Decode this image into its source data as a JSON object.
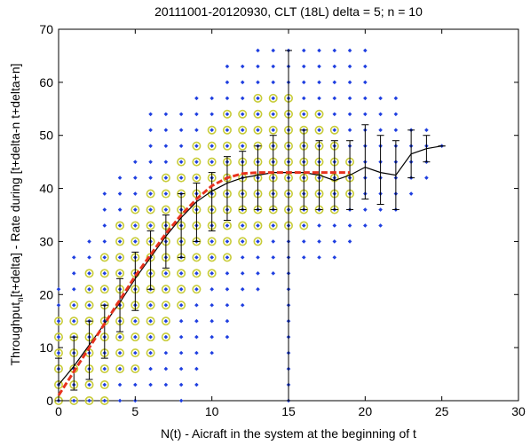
{
  "chart_data": {
    "type": "scatter",
    "title": "20111001-20120930, CLT (18L) delta = 5; n = 10",
    "xlabel": "N(t) - Aicraft in the system at the beginning of t",
    "ylabel_parts": {
      "pre": "Throughput",
      "sub": "n",
      "post": "[t+delta] - Rate during [t+delta-n t+delta+n]"
    },
    "xlim": [
      0,
      30
    ],
    "ylim": [
      0,
      70
    ],
    "xticks": [
      0,
      5,
      10,
      15,
      20,
      25,
      30
    ],
    "yticks": [
      0,
      10,
      20,
      30,
      40,
      50,
      60,
      70
    ],
    "grid": false,
    "colors": {
      "points": "#1f3fe0",
      "highlight_ring": "#c8cc3a",
      "mean_line": "#000000",
      "fit_line": "#e8321e"
    },
    "scatter_columns": [
      {
        "x": 0,
        "ymin": 0,
        "ymax": 21
      },
      {
        "x": 1,
        "ymin": 0,
        "ymax": 27
      },
      {
        "x": 2,
        "ymin": 0,
        "ymax": 30
      },
      {
        "x": 3,
        "ymin": 0,
        "ymax": 39
      },
      {
        "x": 4,
        "ymin": 0,
        "ymax": 42
      },
      {
        "x": 5,
        "ymin": 0,
        "ymax": 45
      },
      {
        "x": 6,
        "ymin": 3,
        "ymax": 54
      },
      {
        "x": 7,
        "ymin": 3,
        "ymax": 54
      },
      {
        "x": 8,
        "ymin": 0,
        "ymax": 54
      },
      {
        "x": 9,
        "ymin": 3,
        "ymax": 57
      },
      {
        "x": 10,
        "ymin": 9,
        "ymax": 57
      },
      {
        "x": 11,
        "ymin": 12,
        "ymax": 63
      },
      {
        "x": 12,
        "ymin": 18,
        "ymax": 63
      },
      {
        "x": 13,
        "ymin": 21,
        "ymax": 66
      },
      {
        "x": 14,
        "ymin": 24,
        "ymax": 66
      },
      {
        "x": 15,
        "ymin": 0,
        "ymax": 66
      },
      {
        "x": 16,
        "ymin": 27,
        "ymax": 66
      },
      {
        "x": 17,
        "ymin": 27,
        "ymax": 66
      },
      {
        "x": 18,
        "ymin": 27,
        "ymax": 66
      },
      {
        "x": 19,
        "ymin": 30,
        "ymax": 66
      },
      {
        "x": 20,
        "ymin": 33,
        "ymax": 66
      },
      {
        "x": 21,
        "ymin": 33,
        "ymax": 57
      },
      {
        "x": 22,
        "ymin": 36,
        "ymax": 57
      },
      {
        "x": 23,
        "ymin": 39,
        "ymax": 51
      },
      {
        "x": 24,
        "ymin": 42,
        "ymax": 51
      },
      {
        "x": 25,
        "ymin": 48,
        "ymax": 48
      }
    ],
    "highlighted_columns": [
      {
        "x": 0,
        "ymin": 0,
        "ymax": 15
      },
      {
        "x": 1,
        "ymin": 0,
        "ymax": 18
      },
      {
        "x": 2,
        "ymin": 0,
        "ymax": 24
      },
      {
        "x": 3,
        "ymin": 0,
        "ymax": 27
      },
      {
        "x": 4,
        "ymin": 6,
        "ymax": 33
      },
      {
        "x": 5,
        "ymin": 6,
        "ymax": 36
      },
      {
        "x": 6,
        "ymin": 9,
        "ymax": 39
      },
      {
        "x": 7,
        "ymin": 12,
        "ymax": 42
      },
      {
        "x": 8,
        "ymin": 18,
        "ymax": 45
      },
      {
        "x": 9,
        "ymin": 21,
        "ymax": 48
      },
      {
        "x": 10,
        "ymin": 24,
        "ymax": 51
      },
      {
        "x": 11,
        "ymin": 27,
        "ymax": 54
      },
      {
        "x": 12,
        "ymin": 30,
        "ymax": 54
      },
      {
        "x": 13,
        "ymin": 30,
        "ymax": 57
      },
      {
        "x": 14,
        "ymin": 33,
        "ymax": 57
      },
      {
        "x": 15,
        "ymin": 33,
        "ymax": 57
      },
      {
        "x": 16,
        "ymin": 33,
        "ymax": 54
      },
      {
        "x": 17,
        "ymin": 36,
        "ymax": 54
      },
      {
        "x": 18,
        "ymin": 36,
        "ymax": 51
      },
      {
        "x": 19,
        "ymin": 39,
        "ymax": 45
      }
    ],
    "mean_series": {
      "x": [
        0,
        1,
        2,
        3,
        4,
        5,
        6,
        7,
        8,
        9,
        10,
        11,
        12,
        13,
        14,
        15,
        16,
        17,
        18,
        19,
        20,
        21,
        22,
        23,
        24,
        25
      ],
      "y": [
        3,
        6.5,
        10.5,
        14.5,
        18.5,
        23,
        27,
        31,
        34.5,
        37.5,
        39.5,
        41,
        42,
        42.5,
        43,
        43,
        43,
        42.5,
        41.5,
        42.5,
        44,
        43,
        42.5,
        46.5,
        47.5,
        48
      ],
      "err_low": [
        0,
        2,
        4,
        8,
        13,
        17,
        21,
        25,
        27,
        30,
        32,
        34,
        36,
        36,
        36,
        0,
        36,
        36,
        36,
        36,
        38,
        37,
        36,
        42,
        45,
        48
      ],
      "err_high": [
        8,
        12,
        15,
        18,
        23,
        28,
        32,
        35,
        39,
        41,
        43,
        46,
        47,
        48,
        50,
        66,
        51,
        49,
        49,
        49,
        52,
        50,
        49,
        51,
        50,
        48
      ]
    },
    "fit_series": {
      "x": [
        0,
        1,
        2,
        3,
        4,
        5,
        6,
        7,
        8,
        9,
        10,
        11,
        12,
        13,
        14,
        15,
        16,
        17,
        18,
        19
      ],
      "y": [
        1,
        5.5,
        10,
        14.5,
        19,
        23.5,
        27.5,
        31.5,
        35,
        38,
        40.5,
        42,
        42.8,
        43,
        43,
        43,
        43,
        43,
        43,
        43
      ]
    }
  }
}
